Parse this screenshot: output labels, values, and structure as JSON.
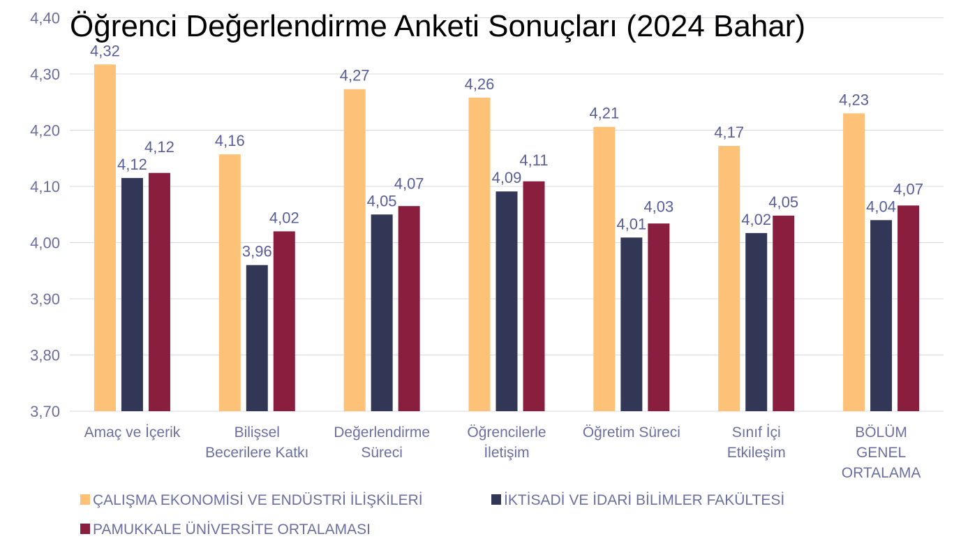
{
  "chart_data": {
    "type": "bar",
    "title": "Öğrenci Değerlendirme Anketi Sonuçları (2024 Bahar)",
    "xlabel": "",
    "ylabel": "",
    "ylim": [
      3.7,
      4.4
    ],
    "yticks": [
      "3,70",
      "3,80",
      "3,90",
      "4,00",
      "4,10",
      "4,20",
      "4,30",
      "4,40"
    ],
    "grid": true,
    "legend_position": "bottom-left",
    "categories": [
      [
        "Amaç ve İçerik"
      ],
      [
        "Bilişsel",
        "Becerilere Katkı"
      ],
      [
        "Değerlendirme",
        "Süreci"
      ],
      [
        "Öğrencilerle",
        "İletişim"
      ],
      [
        "Öğretim Süreci"
      ],
      [
        "Sınıf İçi",
        "Etkileşim"
      ],
      [
        "BÖLÜM",
        "GENEL",
        "ORTALAMA"
      ]
    ],
    "series": [
      {
        "name": "ÇALIŞMA EKONOMİSİ VE ENDÜSTRİ İLİŞKİLERİ",
        "color": "#fec178",
        "values": [
          4.317,
          4.157,
          4.273,
          4.258,
          4.206,
          4.172,
          4.23
        ],
        "labels": [
          "4,32",
          "4,16",
          "4,27",
          "4,26",
          "4,21",
          "4,17",
          "4,23"
        ]
      },
      {
        "name": "İKTİSADİ VE İDARİ BİLİMLER FAKÜLTESİ",
        "color": "#333756",
        "values": [
          4.115,
          3.96,
          4.05,
          4.091,
          4.009,
          4.017,
          4.04
        ],
        "labels": [
          "4,12",
          "3,96",
          "4,05",
          "4,09",
          "4,01",
          "4,02",
          "4,04"
        ]
      },
      {
        "name": "PAMUKKALE ÜNİVERSİTE ORTALAMASI",
        "color": "#8a1e3f",
        "values": [
          4.124,
          4.02,
          4.065,
          4.109,
          4.034,
          4.048,
          4.066
        ],
        "labels": [
          "4,12",
          "4,02",
          "4,07",
          "4,11",
          "4,03",
          "4,05",
          "4,07"
        ]
      }
    ]
  }
}
